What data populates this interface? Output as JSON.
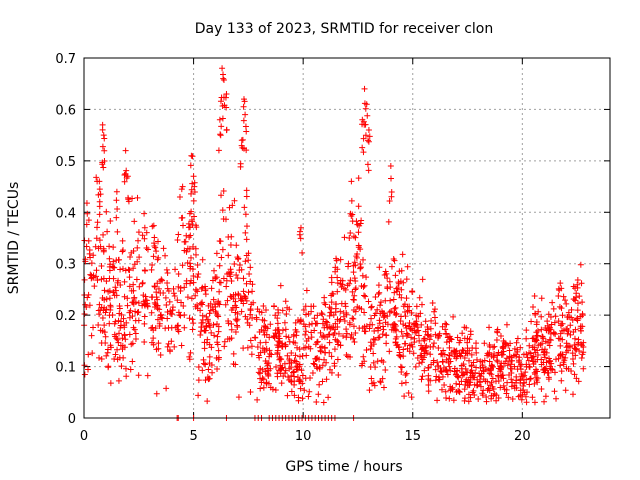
{
  "chart_data": {
    "type": "scatter",
    "title": "Day 133 of 2023, SRMTID for receiver clon",
    "xlabel": "GPS time / hours",
    "ylabel": "SRMTID / TECUs",
    "xlim": [
      0,
      24
    ],
    "ylim": [
      0,
      0.7
    ],
    "xticks": [
      0,
      5,
      10,
      15,
      20
    ],
    "xtick_labels": [
      "0",
      "5",
      "10",
      "15",
      "20"
    ],
    "yticks": [
      0,
      0.1,
      0.2,
      0.3,
      0.4,
      0.5,
      0.6,
      0.7
    ],
    "ytick_labels": [
      "0",
      "0.1",
      "0.2",
      "0.3",
      "0.4",
      "0.5",
      "0.6",
      "0.7"
    ],
    "grid": true,
    "marker": "+",
    "color": "#ff0000",
    "series": [
      {
        "name": "SRMTID",
        "envelope": [
          [
            0.0,
            0.3
          ],
          [
            0.3,
            0.24
          ],
          [
            0.6,
            0.3
          ],
          [
            0.9,
            0.25
          ],
          [
            1.2,
            0.22
          ],
          [
            1.6,
            0.2
          ],
          [
            2.0,
            0.24
          ],
          [
            2.5,
            0.25
          ],
          [
            3.0,
            0.28
          ],
          [
            3.5,
            0.22
          ],
          [
            4.0,
            0.2
          ],
          [
            4.5,
            0.24
          ],
          [
            5.0,
            0.3
          ],
          [
            5.5,
            0.16
          ],
          [
            6.0,
            0.17
          ],
          [
            6.3,
            0.3
          ],
          [
            6.6,
            0.24
          ],
          [
            7.0,
            0.22
          ],
          [
            7.4,
            0.3
          ],
          [
            7.8,
            0.15
          ],
          [
            8.3,
            0.12
          ],
          [
            8.8,
            0.13
          ],
          [
            9.3,
            0.14
          ],
          [
            9.8,
            0.1
          ],
          [
            10.2,
            0.17
          ],
          [
            10.7,
            0.12
          ],
          [
            11.2,
            0.18
          ],
          [
            11.7,
            0.2
          ],
          [
            12.2,
            0.22
          ],
          [
            12.6,
            0.3
          ],
          [
            13.0,
            0.15
          ],
          [
            13.5,
            0.18
          ],
          [
            14.0,
            0.22
          ],
          [
            14.5,
            0.18
          ],
          [
            15.0,
            0.15
          ],
          [
            15.5,
            0.16
          ],
          [
            16.0,
            0.12
          ],
          [
            16.5,
            0.12
          ],
          [
            17.0,
            0.1
          ],
          [
            17.5,
            0.1
          ],
          [
            18.0,
            0.08
          ],
          [
            18.5,
            0.09
          ],
          [
            19.0,
            0.1
          ],
          [
            19.5,
            0.1
          ],
          [
            20.0,
            0.09
          ],
          [
            20.5,
            0.12
          ],
          [
            21.0,
            0.14
          ],
          [
            21.5,
            0.15
          ],
          [
            22.0,
            0.15
          ],
          [
            22.7,
            0.17
          ]
        ],
        "spikes": [
          [
            0.85,
            0.57
          ],
          [
            0.9,
            0.55
          ],
          [
            1.9,
            0.52
          ],
          [
            2.0,
            0.47
          ],
          [
            4.9,
            0.51
          ],
          [
            5.0,
            0.47
          ],
          [
            6.3,
            0.68
          ],
          [
            6.35,
            0.66
          ],
          [
            6.5,
            0.63
          ],
          [
            6.2,
            0.58
          ],
          [
            7.3,
            0.62
          ],
          [
            7.35,
            0.59
          ],
          [
            7.2,
            0.54
          ],
          [
            12.8,
            0.64
          ],
          [
            12.9,
            0.61
          ],
          [
            12.7,
            0.58
          ],
          [
            13.0,
            0.56
          ],
          [
            14.0,
            0.49
          ],
          [
            12.2,
            0.46
          ],
          [
            9.9,
            0.37
          ],
          [
            4.5,
            0.45
          ],
          [
            11.5,
            0.31
          ],
          [
            1.5,
            0.44
          ],
          [
            0.7,
            0.46
          ]
        ],
        "zero_points": [
          4.25,
          4.3,
          5.0,
          6.5,
          7.8,
          7.95,
          8.1,
          8.45,
          8.6,
          8.75,
          8.9,
          9.05,
          9.2,
          9.35,
          9.5,
          9.65,
          9.8,
          9.95,
          10.1,
          10.25,
          10.4,
          10.55,
          10.7,
          10.85,
          11.0,
          11.15,
          11.3,
          11.45,
          12.3
        ]
      }
    ]
  }
}
